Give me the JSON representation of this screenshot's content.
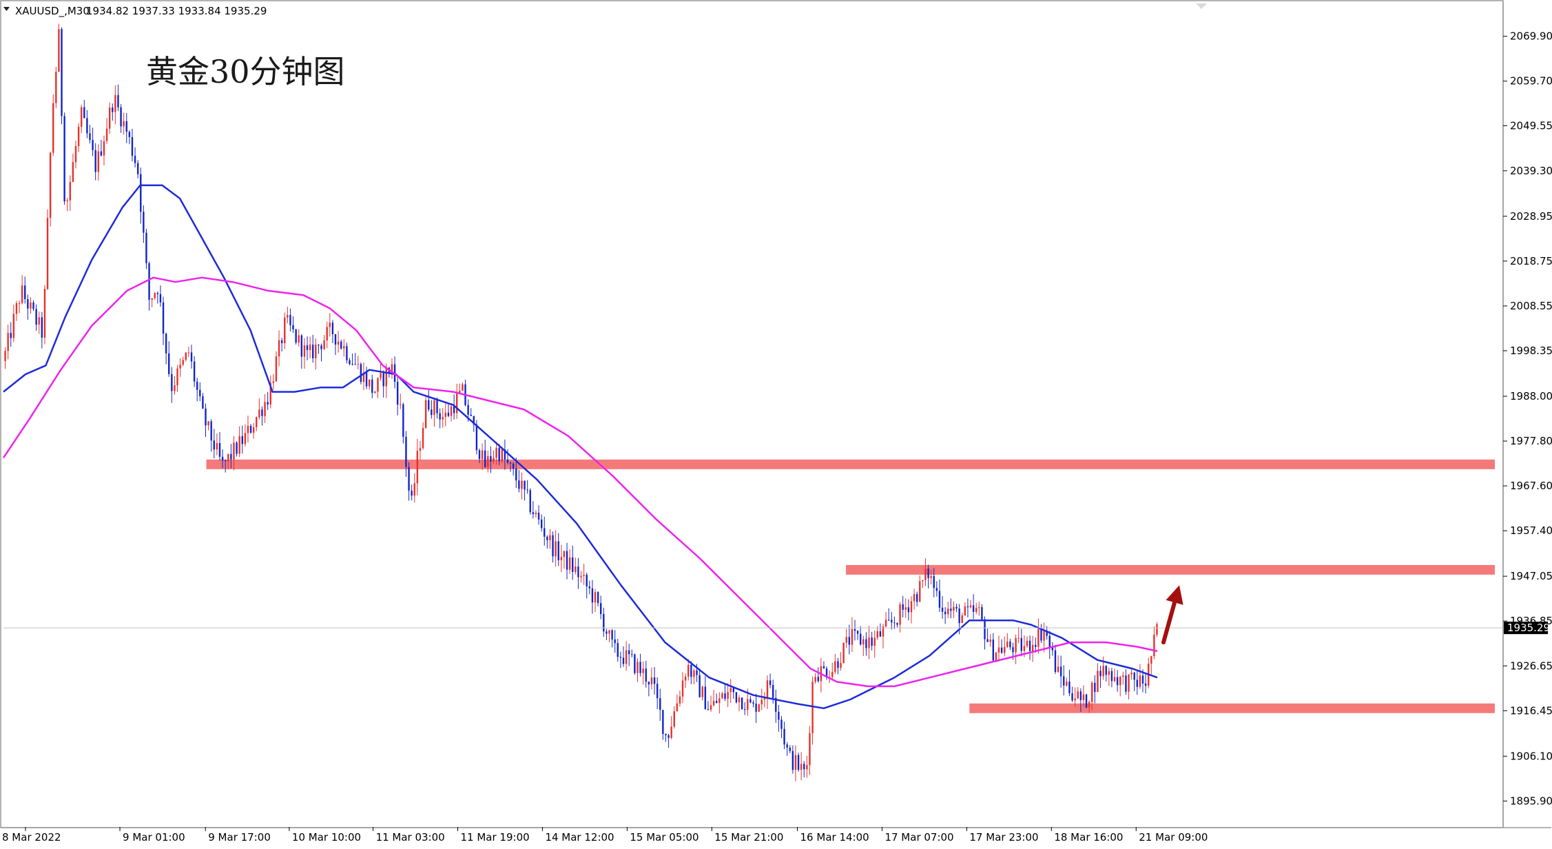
{
  "header": {
    "symbol": "XAUUSD_,M30",
    "ohlc": "1934.82 1937.33 1933.84 1935.29"
  },
  "annotation": {
    "text": "黄金30分钟图"
  },
  "colors": {
    "bull": "#e8302a",
    "bear": "#1024c8",
    "ma_fast": "#1c2bdc",
    "ma_slow": "#ee22ee",
    "zone": "#f47a7a",
    "arrow": "#a50f0f",
    "current_price_bg": "#000000",
    "frame": "#9a9a9a"
  },
  "chart_data": {
    "type": "candlestick",
    "title": "黄金30分钟图",
    "symbol": "XAUUSD_,M30",
    "ylim": [
      1890.0,
      2078.0
    ],
    "xlim": [
      0,
      1700
    ],
    "y_ticks": [
      "2069.90",
      "2059.70",
      "2049.55",
      "2039.30",
      "2028.95",
      "2018.75",
      "2008.55",
      "1998.35",
      "1988.00",
      "1977.80",
      "1967.60",
      "1957.40",
      "1947.05",
      "1936.85",
      "1926.65",
      "1916.45",
      "1906.10",
      "1895.90"
    ],
    "x_ticks": [
      {
        "label": "8 Mar 2022",
        "x": 25
      },
      {
        "label": "9 Mar 01:00",
        "x": 132
      },
      {
        "label": "9 Mar 17:00",
        "x": 229
      },
      {
        "label": "10 Mar 10:00",
        "x": 324
      },
      {
        "label": "11 Mar 03:00",
        "x": 419
      },
      {
        "label": "11 Mar 19:00",
        "x": 515
      },
      {
        "label": "14 Mar 12:00",
        "x": 611
      },
      {
        "label": "15 Mar 05:00",
        "x": 707
      },
      {
        "label": "15 Mar 21:00",
        "x": 803
      },
      {
        "label": "16 Mar 14:00",
        "x": 900
      },
      {
        "label": "17 Mar 07:00",
        "x": 996
      },
      {
        "label": "17 Mar 23:00",
        "x": 1092
      },
      {
        "label": "18 Mar 16:00",
        "x": 1188
      },
      {
        "label": "21 Mar 09:00",
        "x": 1284
      }
    ],
    "current_price": 1935.29,
    "price_path": [
      [
        0,
        1996
      ],
      [
        20,
        2012
      ],
      [
        45,
        2002
      ],
      [
        55,
        2052
      ],
      [
        63,
        2070
      ],
      [
        70,
        2030
      ],
      [
        88,
        2052
      ],
      [
        105,
        2040
      ],
      [
        125,
        2056
      ],
      [
        140,
        2048
      ],
      [
        152,
        2040
      ],
      [
        165,
        2010
      ],
      [
        175,
        2013
      ],
      [
        190,
        1990
      ],
      [
        210,
        1998
      ],
      [
        225,
        1984
      ],
      [
        248,
        1972
      ],
      [
        275,
        1979
      ],
      [
        300,
        1988
      ],
      [
        320,
        2005
      ],
      [
        345,
        1997
      ],
      [
        372,
        2003
      ],
      [
        400,
        1995
      ],
      [
        420,
        1989
      ],
      [
        440,
        1995
      ],
      [
        450,
        1985
      ],
      [
        462,
        1962
      ],
      [
        470,
        1975
      ],
      [
        480,
        1987
      ],
      [
        500,
        1983
      ],
      [
        520,
        1989
      ],
      [
        545,
        1972
      ],
      [
        560,
        1976
      ],
      [
        585,
        1968
      ],
      [
        605,
        1960
      ],
      [
        625,
        1953
      ],
      [
        650,
        1948
      ],
      [
        670,
        1942
      ],
      [
        692,
        1930
      ],
      [
        710,
        1928
      ],
      [
        735,
        1923
      ],
      [
        752,
        1910
      ],
      [
        775,
        1927
      ],
      [
        800,
        1917
      ],
      [
        825,
        1921
      ],
      [
        850,
        1917
      ],
      [
        870,
        1923
      ],
      [
        890,
        1906
      ],
      [
        910,
        1902
      ],
      [
        918,
        1925
      ],
      [
        940,
        1926
      ],
      [
        960,
        1933
      ],
      [
        985,
        1932
      ],
      [
        1010,
        1937
      ],
      [
        1035,
        1943
      ],
      [
        1048,
        1948
      ],
      [
        1065,
        1940
      ],
      [
        1085,
        1938
      ],
      [
        1105,
        1939
      ],
      [
        1120,
        1930
      ],
      [
        1140,
        1931
      ],
      [
        1160,
        1931
      ],
      [
        1180,
        1935
      ],
      [
        1195,
        1925
      ],
      [
        1210,
        1921
      ],
      [
        1225,
        1918
      ],
      [
        1245,
        1926
      ],
      [
        1270,
        1923
      ],
      [
        1295,
        1923
      ],
      [
        1300,
        1928
      ],
      [
        1308,
        1935
      ]
    ],
    "series": [
      {
        "type": "ma",
        "color": "#1c2bdc",
        "points": [
          [
            0,
            1989
          ],
          [
            25,
            1993
          ],
          [
            48,
            1995
          ],
          [
            70,
            2006
          ],
          [
            100,
            2019
          ],
          [
            135,
            2031
          ],
          [
            155,
            2036
          ],
          [
            180,
            2036
          ],
          [
            200,
            2033
          ],
          [
            225,
            2024
          ],
          [
            250,
            2015
          ],
          [
            280,
            2003
          ],
          [
            305,
            1989
          ],
          [
            330,
            1989
          ],
          [
            360,
            1990
          ],
          [
            385,
            1990
          ],
          [
            415,
            1994
          ],
          [
            445,
            1993
          ],
          [
            465,
            1989
          ],
          [
            510,
            1986
          ],
          [
            555,
            1978
          ],
          [
            605,
            1969
          ],
          [
            650,
            1959
          ],
          [
            700,
            1945
          ],
          [
            750,
            1932
          ],
          [
            800,
            1924
          ],
          [
            850,
            1920
          ],
          [
            900,
            1918
          ],
          [
            930,
            1917
          ],
          [
            960,
            1919
          ],
          [
            1010,
            1924
          ],
          [
            1050,
            1929
          ],
          [
            1095,
            1937
          ],
          [
            1145,
            1937
          ],
          [
            1165,
            1936
          ],
          [
            1200,
            1933
          ],
          [
            1240,
            1928
          ],
          [
            1280,
            1926
          ],
          [
            1308,
            1924
          ]
        ]
      },
      {
        "type": "ma",
        "color": "#ee22ee",
        "points": [
          [
            0,
            1974
          ],
          [
            30,
            1983
          ],
          [
            65,
            1994
          ],
          [
            100,
            2004
          ],
          [
            140,
            2012
          ],
          [
            170,
            2015
          ],
          [
            195,
            2014
          ],
          [
            225,
            2015
          ],
          [
            260,
            2014
          ],
          [
            300,
            2012
          ],
          [
            340,
            2011
          ],
          [
            370,
            2008
          ],
          [
            400,
            2003
          ],
          [
            430,
            1995
          ],
          [
            465,
            1990
          ],
          [
            510,
            1989
          ],
          [
            550,
            1987
          ],
          [
            590,
            1985
          ],
          [
            640,
            1979
          ],
          [
            690,
            1970
          ],
          [
            740,
            1960
          ],
          [
            790,
            1951
          ],
          [
            840,
            1941
          ],
          [
            880,
            1933
          ],
          [
            915,
            1926
          ],
          [
            945,
            1923
          ],
          [
            980,
            1922
          ],
          [
            1010,
            1922
          ],
          [
            1050,
            1924
          ],
          [
            1090,
            1926
          ],
          [
            1130,
            1928
          ],
          [
            1170,
            1930
          ],
          [
            1210,
            1932
          ],
          [
            1250,
            1932
          ],
          [
            1285,
            1931
          ],
          [
            1308,
            1930
          ]
        ]
      }
    ],
    "zones": [
      1972.5,
      1948.5,
      1917.0
    ],
    "arrow": {
      "from": [
        1315,
        1932
      ],
      "to": [
        1333,
        1945
      ]
    }
  }
}
